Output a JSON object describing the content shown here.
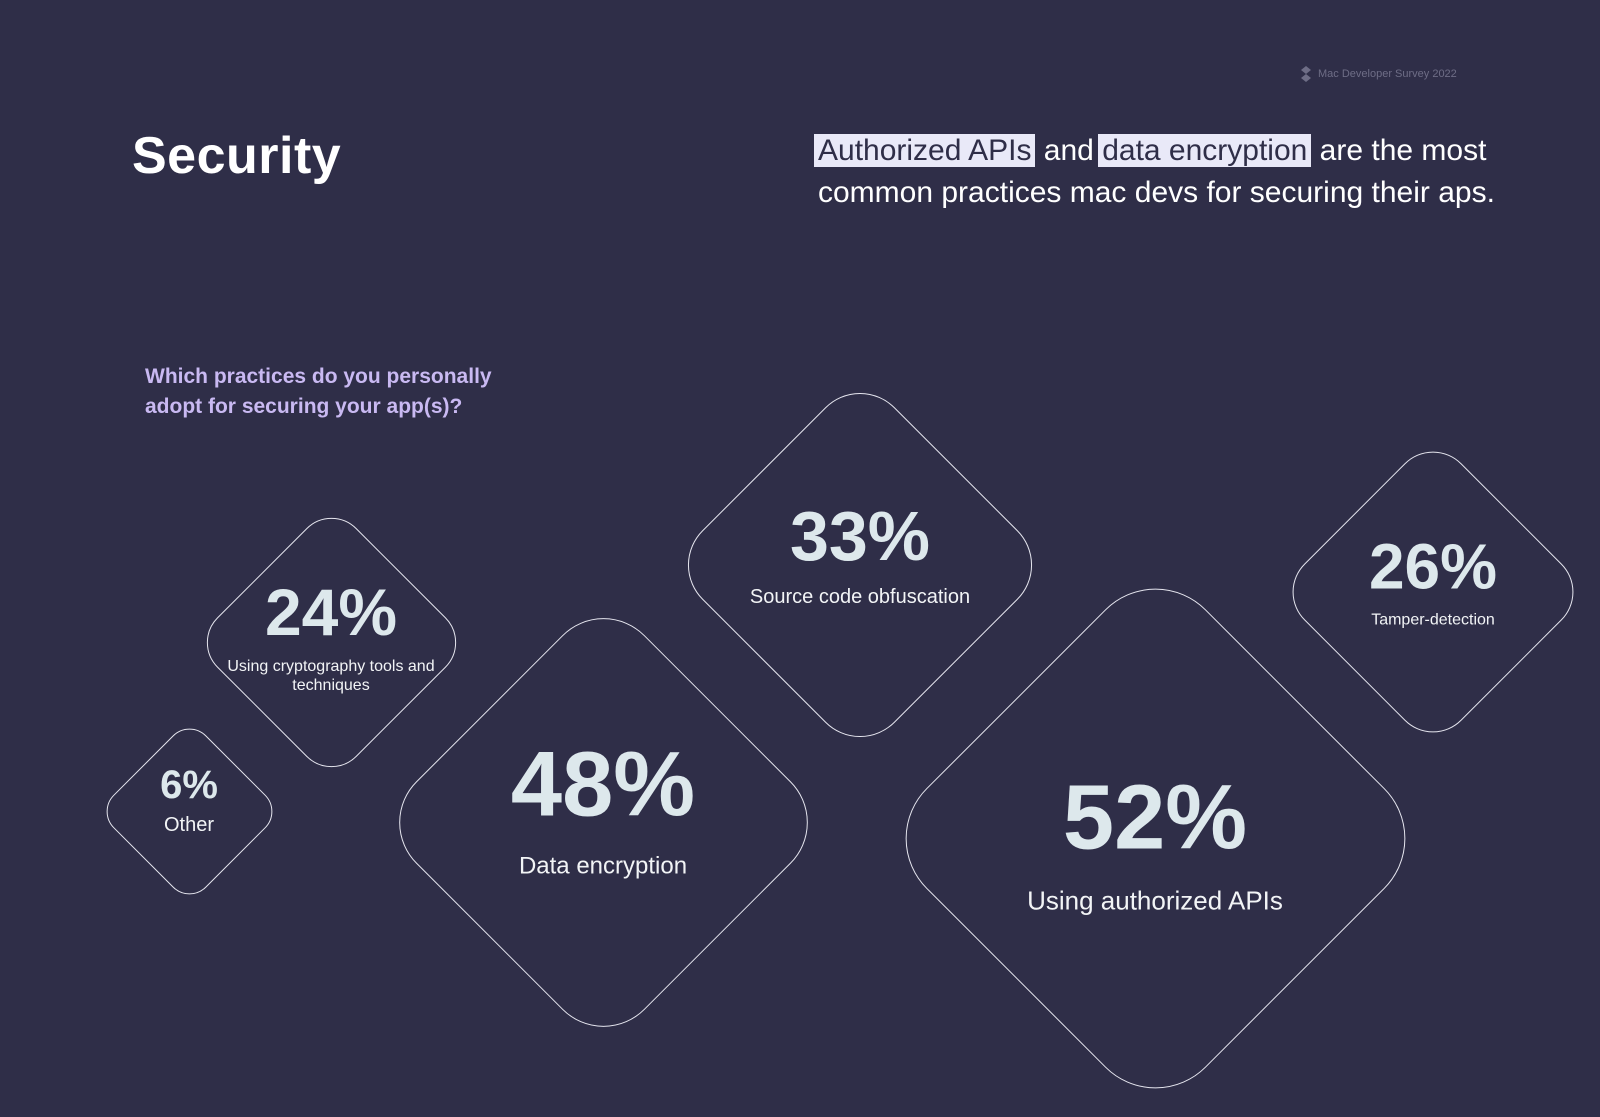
{
  "header": {
    "brand": "Mac Developer Survey 2022",
    "title": "Security"
  },
  "headline": {
    "hl1": "Authorized APIs",
    "mid": " and ",
    "hl2": "data encryption",
    "rest": " are the most common practices mac devs for securing their aps."
  },
  "question": "Which practices do you personally adopt for securing your app(s)?",
  "chart_data": {
    "type": "bubble-diamonds",
    "unit": "%",
    "items": [
      {
        "label": "Using authorized APIs",
        "value": 52,
        "display": "52%"
      },
      {
        "label": "Data encryption",
        "value": 48,
        "display": "48%"
      },
      {
        "label": "Source code obfuscation",
        "value": 33,
        "display": "33%"
      },
      {
        "label": "Tamper-detection",
        "value": 26,
        "display": "26%"
      },
      {
        "label": "Using cryptography tools and techniques",
        "value": 24,
        "display": "24%"
      },
      {
        "label": "Other",
        "value": 6,
        "display": "6%"
      }
    ]
  },
  "colors": {
    "background": "#2f2e48",
    "highlight": "#e9e9f8",
    "question": "#c9b9f2",
    "outline": "#e6e6ef",
    "value_text": "#dde8ec"
  }
}
